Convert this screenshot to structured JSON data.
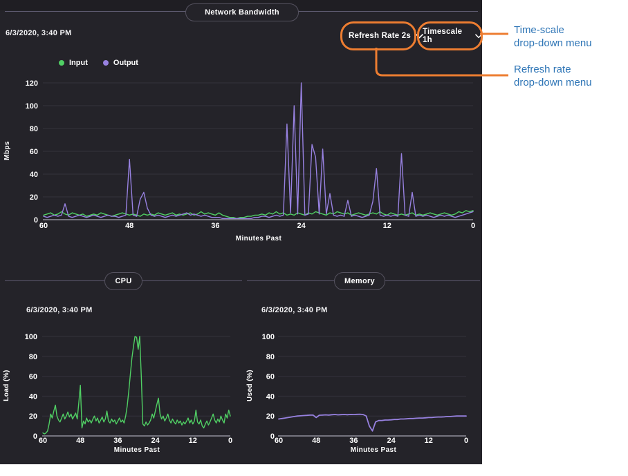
{
  "colors": {
    "panel_bg": "#242329",
    "green": "#50cf64",
    "purple": "#9781e0",
    "callout_orange": "#ed7d31",
    "annotation_blue": "#2e75b6",
    "divider": "#5f5c72",
    "grid": "#34333c",
    "axis": "#90909a"
  },
  "network": {
    "title": "Network Bandwidth",
    "timestamp": "6/3/2020, 3:40 PM",
    "legend": [
      {
        "label": "Input",
        "color": "#50cf64"
      },
      {
        "label": "Output",
        "color": "#9781e0"
      }
    ]
  },
  "cpu": {
    "title": "CPU",
    "timestamp": "6/3/2020, 3:40 PM"
  },
  "memory": {
    "title": "Memory",
    "timestamp": "6/3/2020, 3:40 PM"
  },
  "controls": {
    "refresh_rate_label": "Refresh Rate 2s",
    "timescale_label": "Timescale 1h"
  },
  "annotations": {
    "timescale": [
      "Time-scale",
      "drop-down menu"
    ],
    "refresh": [
      "Refresh rate",
      "drop-down menu"
    ]
  },
  "chart_data": [
    {
      "type": "line",
      "title": "Network Bandwidth",
      "xlabel": "Minutes Past",
      "ylabel": "Mbps",
      "x_ticks": [
        60,
        48,
        36,
        24,
        12,
        0
      ],
      "y_ticks": [
        0,
        20,
        40,
        60,
        80,
        100,
        120
      ],
      "xlim": [
        60,
        0
      ],
      "ylim": [
        0,
        120
      ],
      "x_step": 0.5,
      "grid": true,
      "legend_position": "top-left",
      "series": [
        {
          "name": "Input",
          "color": "#50cf64",
          "values": [
            4,
            5,
            6,
            4,
            5,
            7,
            5,
            4,
            6,
            5,
            4,
            5,
            3,
            4,
            5,
            4,
            6,
            5,
            4,
            3,
            4,
            5,
            6,
            5,
            4,
            5,
            4,
            3,
            5,
            4,
            5,
            4,
            6,
            5,
            4,
            5,
            6,
            4,
            5,
            4,
            5,
            6,
            4,
            5,
            7,
            5,
            6,
            5,
            4,
            6,
            4,
            3,
            2,
            2,
            1,
            2,
            2,
            3,
            3,
            4,
            4,
            5,
            4,
            6,
            5,
            7,
            5,
            6,
            4,
            5,
            4,
            6,
            5,
            4,
            6,
            5,
            7,
            6,
            5,
            4,
            6,
            5,
            7,
            6,
            5,
            6,
            4,
            5,
            6,
            5,
            4,
            5,
            6,
            5,
            7,
            5,
            4,
            6,
            5,
            4,
            5,
            4,
            5,
            6,
            4,
            5,
            4,
            5,
            6,
            5,
            4,
            5,
            6,
            5,
            4,
            5,
            7,
            6,
            8,
            7,
            8
          ]
        },
        {
          "name": "Output",
          "color": "#9781e0",
          "values": [
            3,
            2,
            3,
            4,
            3,
            4,
            14,
            3,
            2,
            3,
            4,
            3,
            2,
            3,
            4,
            3,
            2,
            3,
            4,
            3,
            3,
            2,
            3,
            4,
            53,
            4,
            3,
            18,
            24,
            10,
            4,
            3,
            4,
            3,
            2,
            3,
            4,
            3,
            4,
            5,
            6,
            4,
            5,
            4,
            3,
            4,
            3,
            2,
            2,
            2,
            1,
            1,
            1,
            1,
            1,
            1,
            1,
            1,
            1,
            2,
            2,
            3,
            3,
            2,
            3,
            4,
            3,
            4,
            84,
            6,
            100,
            5,
            120,
            4,
            5,
            66,
            55,
            5,
            62,
            5,
            23,
            4,
            3,
            4,
            3,
            17,
            3,
            4,
            3,
            2,
            3,
            4,
            16,
            45,
            4,
            3,
            4,
            3,
            4,
            3,
            58,
            4,
            3,
            24,
            3,
            4,
            3,
            4,
            3,
            2,
            3,
            4,
            3,
            4,
            3,
            2,
            3,
            4,
            5,
            6,
            7
          ]
        }
      ]
    },
    {
      "type": "line",
      "title": "CPU",
      "xlabel": "Minutes Past",
      "ylabel": "Load (%)",
      "x_ticks": [
        60,
        48,
        36,
        24,
        12,
        0
      ],
      "y_ticks": [
        0,
        20,
        40,
        60,
        80,
        100
      ],
      "xlim": [
        60,
        0
      ],
      "ylim": [
        0,
        100
      ],
      "x_step": 0.5,
      "grid": true,
      "series": [
        {
          "name": "Load",
          "color": "#50cf64",
          "values": [
            3,
            2,
            3,
            5,
            12,
            22,
            18,
            25,
            31,
            20,
            16,
            14,
            18,
            22,
            17,
            20,
            24,
            19,
            22,
            17,
            20,
            23,
            17,
            33,
            51,
            8,
            15,
            12,
            18,
            14,
            16,
            13,
            17,
            20,
            15,
            18,
            13,
            16,
            19,
            14,
            17,
            25,
            15,
            13,
            17,
            14,
            16,
            12,
            15,
            18,
            14,
            16,
            13,
            20,
            30,
            45,
            62,
            78,
            90,
            100,
            99,
            87,
            100,
            60,
            12,
            10,
            14,
            11,
            13,
            16,
            22,
            18,
            25,
            32,
            38,
            22,
            17,
            20,
            15,
            18,
            22,
            16,
            13,
            17,
            14,
            12,
            16,
            13,
            15,
            11,
            14,
            12,
            15,
            18,
            13,
            16,
            12,
            15,
            26,
            14,
            12,
            16,
            10,
            8,
            12,
            15,
            11,
            14,
            18,
            22,
            16,
            13,
            17,
            14,
            20,
            16,
            13,
            22,
            18,
            26,
            20
          ]
        }
      ]
    },
    {
      "type": "line",
      "title": "Memory",
      "xlabel": "Minutes Past",
      "ylabel": "Used (%)",
      "x_ticks": [
        60,
        48,
        36,
        24,
        12,
        0
      ],
      "y_ticks": [
        0,
        20,
        40,
        60,
        80,
        100
      ],
      "xlim": [
        60,
        0
      ],
      "ylim": [
        0,
        100
      ],
      "x_step": 1,
      "grid": true,
      "series": [
        {
          "name": "Used",
          "color": "#9781e0",
          "values": [
            17,
            17.5,
            18,
            18.5,
            19,
            19.5,
            20,
            20.2,
            20.5,
            20.7,
            21,
            21,
            18.5,
            20.8,
            21,
            21.2,
            21,
            21.3,
            21.5,
            21.2,
            21.4,
            21.5,
            21.3,
            21.6,
            21.5,
            21.7,
            21.8,
            21.5,
            20,
            10,
            5,
            14,
            15.5,
            15.5,
            16,
            16,
            16.2,
            16.5,
            16.5,
            17,
            17,
            17.2,
            17.5,
            17.5,
            17.8,
            18,
            18,
            18.2,
            18.5,
            18.5,
            18.8,
            19,
            19,
            19.2,
            19.5,
            19.5,
            19.8,
            20,
            20,
            20,
            20
          ]
        }
      ]
    }
  ]
}
